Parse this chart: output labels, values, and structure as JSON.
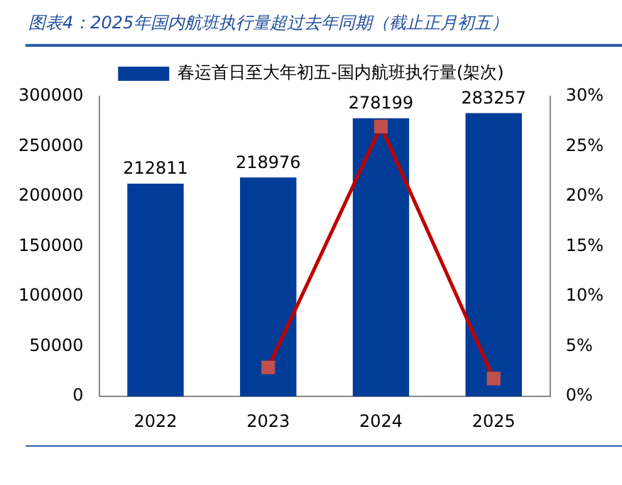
{
  "chart_data": {
    "type": "bar",
    "title": "图表4：2025年国内航班执行量超过去年同期（截止正月初五）",
    "categories": [
      "2022",
      "2023",
      "2024",
      "2025"
    ],
    "series": [
      {
        "name": "春运首日至大年初五-国内航班执行量(架次)",
        "color": "#003d99",
        "values": [
          212811,
          218976,
          278199,
          283257
        ],
        "value_labels": [
          "212811",
          "218976",
          "278199",
          "283257"
        ]
      },
      {
        "type": "line",
        "axis": "y2",
        "color": "#c00000",
        "values": [
          null,
          2.9,
          27.0,
          1.8
        ],
        "marker": "square"
      }
    ],
    "ylim": [
      0,
      300000
    ],
    "yticks": [
      0,
      50000,
      100000,
      150000,
      200000,
      250000,
      300000
    ],
    "y2lim": [
      0,
      30
    ],
    "y2ticks": [
      {
        "value": 0,
        "label": "0%"
      },
      {
        "value": 5,
        "label": "5%"
      },
      {
        "value": 10,
        "label": "10%"
      },
      {
        "value": 15,
        "label": "15%"
      },
      {
        "value": 20,
        "label": "20%"
      },
      {
        "value": 25,
        "label": "25%"
      },
      {
        "value": 30,
        "label": "30%"
      }
    ],
    "legend": "top",
    "grid": false
  }
}
